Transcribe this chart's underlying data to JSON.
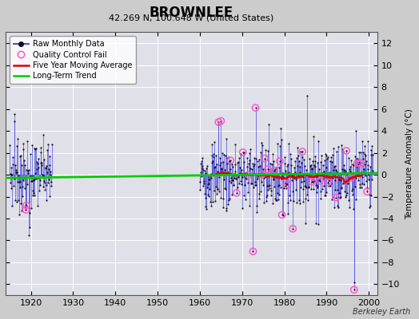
{
  "title": "BROWNLEE",
  "subtitle": "42.269 N, 100.648 W (United States)",
  "ylabel": "Temperature Anomaly (°C)",
  "credit": "Berkeley Earth",
  "ylim": [
    -11,
    13
  ],
  "yticks": [
    -10,
    -8,
    -6,
    -4,
    -2,
    0,
    2,
    4,
    6,
    8,
    10,
    12
  ],
  "xlim": [
    1914,
    2002
  ],
  "xticks": [
    1920,
    1930,
    1940,
    1950,
    1960,
    1970,
    1980,
    1990,
    2000
  ],
  "bg_color": "#cccccc",
  "plot_bg_color": "#e0e0e8",
  "grid_color": "#ffffff",
  "raw_line_color": "#4444dd",
  "raw_dot_color": "#111111",
  "qc_color": "#ff55cc",
  "moving_avg_color": "#dd0000",
  "trend_color": "#00cc00",
  "legend_loc": "upper left",
  "figsize": [
    5.24,
    4.0
  ],
  "dpi": 100
}
